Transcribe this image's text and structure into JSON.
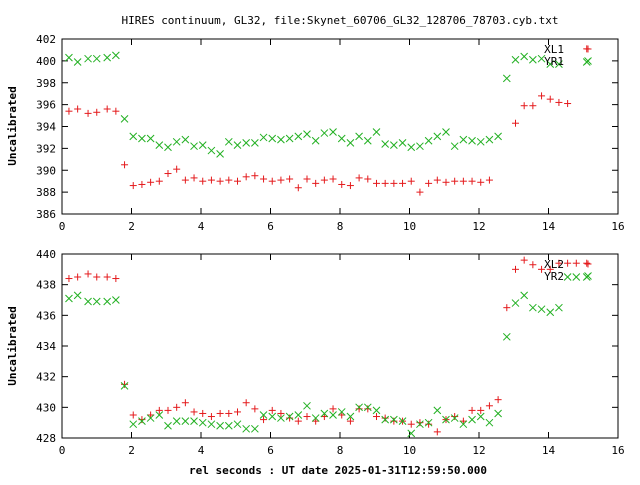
{
  "title": "HIRES continuum, GL32, file:Skynet_60706_GL32_128706_78703.cyb.txt",
  "xlabel": "rel seconds : UT date 2025-01-31T12:59:50.000",
  "colors": {
    "red": "#e41a1c",
    "green": "#22b022",
    "frame": "#000000"
  },
  "chart_data": [
    {
      "type": "scatter",
      "title": "HIRES continuum, GL32, file:Skynet_60706_GL32_128706_78703.cyb.txt",
      "xlabel": "",
      "ylabel": "Uncalibrated",
      "xlim": [
        0,
        16
      ],
      "ylim": [
        386,
        402
      ],
      "xticks": [
        "0",
        "2",
        "4",
        "6",
        "8",
        "10",
        "12",
        "14",
        "16"
      ],
      "yticks": [
        "386",
        "388",
        "390",
        "392",
        "394",
        "396",
        "398",
        "400",
        "402"
      ],
      "legend_position": "top-right",
      "grid": false,
      "x": [
        0.2,
        0.45,
        0.75,
        1.0,
        1.3,
        1.55,
        1.8,
        2.05,
        2.3,
        2.55,
        2.8,
        3.05,
        3.3,
        3.55,
        3.8,
        4.05,
        4.3,
        4.55,
        4.8,
        5.05,
        5.3,
        5.55,
        5.8,
        6.05,
        6.3,
        6.55,
        6.8,
        7.05,
        7.3,
        7.55,
        7.8,
        8.05,
        8.3,
        8.55,
        8.8,
        9.05,
        9.3,
        9.55,
        9.8,
        10.05,
        10.3,
        10.55,
        10.8,
        11.05,
        11.3,
        11.55,
        11.8,
        12.05,
        12.3,
        12.55,
        12.8,
        13.05,
        13.3,
        13.55,
        13.8,
        14.05,
        14.3,
        14.55,
        14.8,
        15.1
      ],
      "series": [
        {
          "name": "XL1",
          "marker": "plus",
          "color": "#e41a1c",
          "values": [
            395.4,
            395.6,
            395.2,
            395.3,
            395.6,
            395.4,
            390.5,
            388.6,
            388.7,
            388.9,
            389.0,
            389.7,
            390.1,
            389.1,
            389.3,
            389.0,
            389.1,
            389.0,
            389.1,
            389.0,
            389.4,
            389.5,
            389.2,
            389.0,
            389.1,
            389.2,
            388.4,
            389.2,
            388.8,
            389.1,
            389.2,
            388.7,
            388.6,
            389.3,
            389.2,
            388.8,
            388.8,
            388.8,
            388.8,
            389.0,
            388.0,
            388.8,
            389.1,
            388.9,
            389.0,
            389.0,
            389.0,
            388.9,
            389.1,
            394.3,
            395.9,
            395.9,
            396.8,
            396.5,
            396.2,
            396.1,
            401.1
          ],
          "x_override": [
            0.2,
            0.45,
            0.75,
            1.0,
            1.3,
            1.55,
            1.8,
            2.05,
            2.3,
            2.55,
            2.8,
            3.05,
            3.3,
            3.55,
            3.8,
            4.05,
            4.3,
            4.55,
            4.8,
            5.05,
            5.3,
            5.55,
            5.8,
            6.05,
            6.3,
            6.55,
            6.8,
            7.05,
            7.3,
            7.55,
            7.8,
            8.05,
            8.3,
            8.55,
            8.8,
            9.05,
            9.3,
            9.55,
            9.8,
            10.05,
            10.3,
            10.55,
            10.8,
            11.05,
            11.3,
            11.55,
            11.8,
            12.05,
            12.3,
            13.05,
            13.3,
            13.55,
            13.8,
            14.05,
            14.3,
            14.55,
            15.1
          ]
        },
        {
          "name": "YR1",
          "marker": "cross",
          "color": "#22b022",
          "values": [
            400.3,
            399.9,
            400.2,
            400.2,
            400.3,
            400.5,
            394.7,
            393.1,
            392.9,
            392.9,
            392.3,
            392.1,
            392.6,
            392.8,
            392.2,
            392.3,
            391.8,
            391.5,
            392.6,
            392.3,
            392.5,
            392.5,
            393.0,
            392.9,
            392.8,
            392.9,
            393.1,
            393.3,
            392.7,
            393.4,
            393.5,
            392.9,
            392.5,
            393.1,
            392.7,
            393.5,
            392.4,
            392.3,
            392.5,
            392.1,
            392.2,
            392.7,
            393.1,
            393.5,
            392.2,
            392.8,
            392.7,
            392.6,
            392.8,
            393.1,
            398.4,
            400.1,
            400.4,
            400.1,
            400.2,
            399.7,
            399.7,
            399.9
          ],
          "x_override": [
            0.2,
            0.45,
            0.75,
            1.0,
            1.3,
            1.55,
            1.8,
            2.05,
            2.3,
            2.55,
            2.8,
            3.05,
            3.3,
            3.55,
            3.8,
            4.05,
            4.3,
            4.55,
            4.8,
            5.05,
            5.3,
            5.55,
            5.8,
            6.05,
            6.3,
            6.55,
            6.8,
            7.05,
            7.3,
            7.55,
            7.8,
            8.05,
            8.3,
            8.55,
            8.8,
            9.05,
            9.3,
            9.55,
            9.8,
            10.05,
            10.3,
            10.55,
            10.8,
            11.05,
            11.3,
            11.55,
            11.8,
            12.05,
            12.3,
            12.55,
            12.8,
            13.05,
            13.3,
            13.55,
            13.8,
            14.05,
            14.3,
            15.1
          ]
        }
      ]
    },
    {
      "type": "scatter",
      "title": "",
      "xlabel": "rel seconds : UT date 2025-01-31T12:59:50.000",
      "ylabel": "Uncalibrated",
      "xlim": [
        0,
        16
      ],
      "ylim": [
        428,
        440
      ],
      "xticks": [
        "0",
        "2",
        "4",
        "6",
        "8",
        "10",
        "12",
        "14",
        "16"
      ],
      "yticks": [
        "428",
        "430",
        "432",
        "434",
        "436",
        "438",
        "440"
      ],
      "legend_position": "top-right",
      "grid": false,
      "series": [
        {
          "name": "XL2",
          "marker": "plus",
          "color": "#e41a1c",
          "x": [
            0.2,
            0.45,
            0.75,
            1.0,
            1.3,
            1.55,
            1.8,
            2.05,
            2.3,
            2.55,
            2.8,
            3.05,
            3.3,
            3.55,
            3.8,
            4.05,
            4.3,
            4.55,
            4.8,
            5.05,
            5.3,
            5.55,
            5.8,
            6.05,
            6.3,
            6.55,
            6.8,
            7.05,
            7.3,
            7.55,
            7.8,
            8.05,
            8.3,
            8.55,
            8.8,
            9.05,
            9.3,
            9.55,
            9.8,
            10.05,
            10.3,
            10.55,
            10.8,
            11.05,
            11.3,
            11.55,
            11.8,
            12.05,
            12.3,
            12.55,
            12.8,
            13.05,
            13.3,
            13.55,
            13.8,
            14.05,
            14.3,
            14.55,
            14.8,
            15.1
          ],
          "values": [
            438.4,
            438.5,
            438.7,
            438.5,
            438.5,
            438.4,
            431.5,
            429.5,
            429.2,
            429.5,
            429.8,
            429.8,
            430.0,
            430.3,
            429.7,
            429.6,
            429.4,
            429.6,
            429.6,
            429.7,
            430.3,
            429.9,
            429.2,
            429.8,
            429.6,
            429.3,
            429.1,
            429.4,
            429.1,
            429.4,
            429.9,
            429.5,
            429.1,
            429.9,
            429.9,
            429.4,
            429.3,
            429.1,
            429.1,
            428.9,
            429.0,
            428.9,
            428.4,
            429.2,
            429.4,
            429.1,
            429.8,
            429.8,
            430.1,
            430.5,
            436.5,
            439.0,
            439.6,
            439.3,
            439.0,
            439.0,
            439.4,
            439.4,
            439.4,
            439.4
          ]
        },
        {
          "name": "YR2",
          "marker": "cross",
          "color": "#22b022",
          "x": [
            0.2,
            0.45,
            0.75,
            1.0,
            1.3,
            1.55,
            1.8,
            2.05,
            2.3,
            2.55,
            2.8,
            3.05,
            3.3,
            3.55,
            3.8,
            4.05,
            4.3,
            4.55,
            4.8,
            5.05,
            5.3,
            5.55,
            5.8,
            6.05,
            6.3,
            6.55,
            6.8,
            7.05,
            7.3,
            7.55,
            7.8,
            8.05,
            8.3,
            8.55,
            8.8,
            9.05,
            9.3,
            9.55,
            9.8,
            10.05,
            10.3,
            10.55,
            10.8,
            11.05,
            11.3,
            11.55,
            11.8,
            12.05,
            12.3,
            12.55,
            12.8,
            13.05,
            13.3,
            13.55,
            13.8,
            14.05,
            14.3,
            14.55,
            14.8,
            15.1
          ],
          "values": [
            437.1,
            437.3,
            436.9,
            436.9,
            436.9,
            437.0,
            431.4,
            428.9,
            429.1,
            429.3,
            429.5,
            428.8,
            429.1,
            429.1,
            429.1,
            429.0,
            428.9,
            428.8,
            428.8,
            428.9,
            428.6,
            428.6,
            429.5,
            429.4,
            429.3,
            429.4,
            429.5,
            430.1,
            429.3,
            429.6,
            429.5,
            429.7,
            429.4,
            430.0,
            430.0,
            429.8,
            429.2,
            429.2,
            429.1,
            428.3,
            428.9,
            429.0,
            429.8,
            429.2,
            429.3,
            428.9,
            429.2,
            429.4,
            429.0,
            429.6,
            434.6,
            436.8,
            437.3,
            436.5,
            436.4,
            436.2,
            436.5,
            438.5,
            438.5,
            438.5
          ]
        }
      ]
    }
  ]
}
